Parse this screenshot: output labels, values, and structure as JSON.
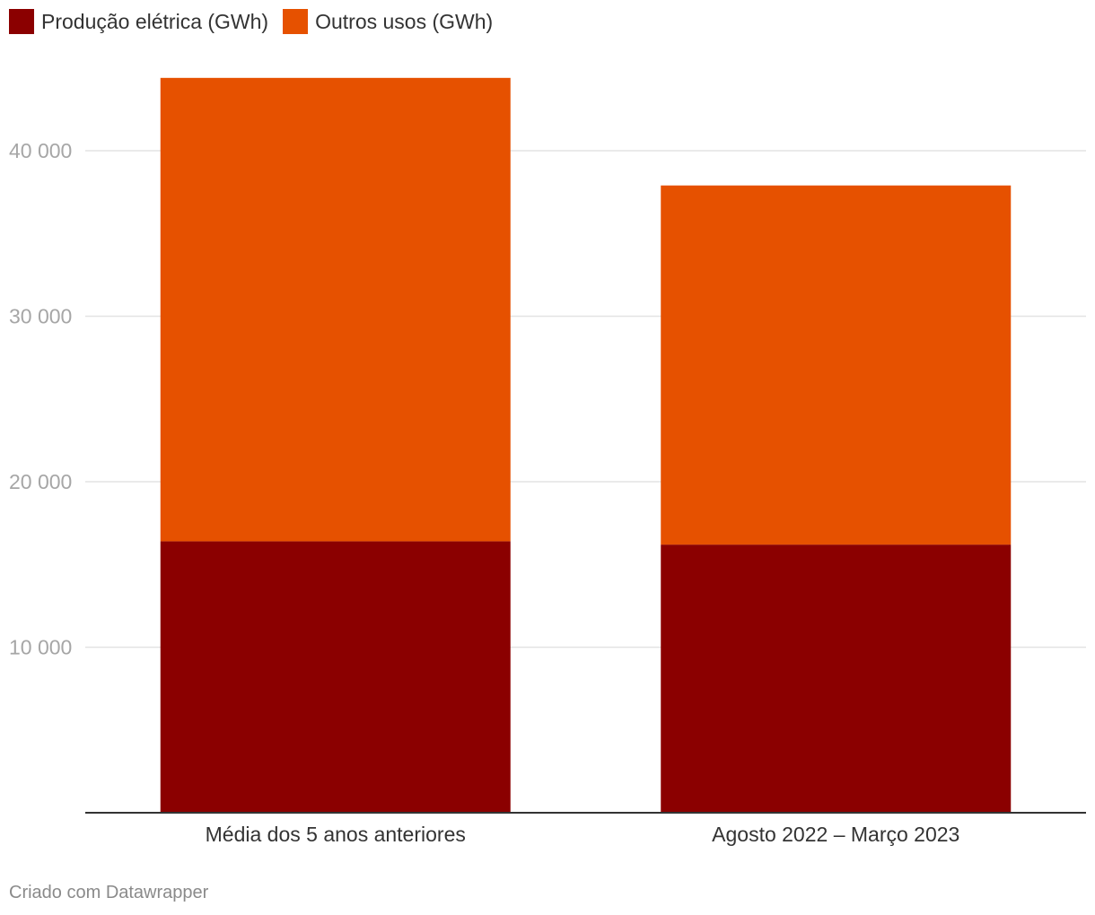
{
  "chart_data": {
    "type": "bar",
    "stacked": true,
    "categories": [
      "Média dos 5 anos anteriores",
      "Agosto 2022 – Março 2023"
    ],
    "series": [
      {
        "name": "Produção elétrica (GWh)",
        "values": [
          16400,
          16200
        ],
        "color": "#8b0000"
      },
      {
        "name": "Outros usos (GWh)",
        "values": [
          28000,
          21700
        ],
        "color": "#e65100"
      }
    ],
    "yticks": [
      {
        "value": 10000,
        "label": "10 000"
      },
      {
        "value": 20000,
        "label": "20 000"
      },
      {
        "value": 30000,
        "label": "30 000"
      },
      {
        "value": 40000,
        "label": "40 000"
      }
    ],
    "ylim": [
      0,
      45000
    ],
    "grid": true,
    "legend_position": "top-left"
  },
  "legend": {
    "items": [
      {
        "label": "Produção elétrica (GWh)",
        "color": "#8b0000"
      },
      {
        "label": "Outros usos (GWh)",
        "color": "#e65100"
      }
    ]
  },
  "footer": {
    "credit": "Criado com Datawrapper"
  }
}
